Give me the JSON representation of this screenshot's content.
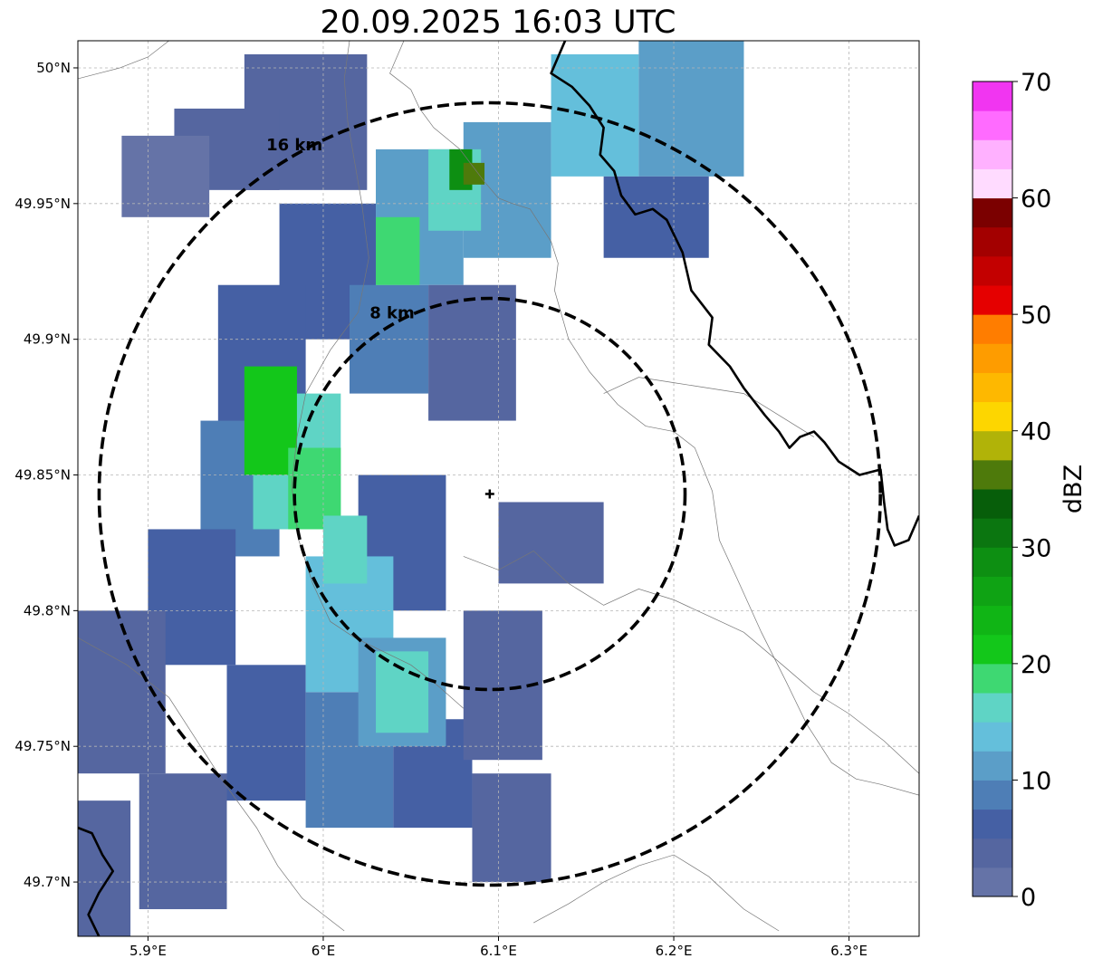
{
  "title": "20.09.2025 16:03 UTC",
  "map": {
    "lon_range": [
      5.86,
      6.34
    ],
    "lat_range": [
      49.68,
      50.01
    ],
    "lon_ticks": [
      {
        "value": 5.9,
        "label": "5.9°E"
      },
      {
        "value": 6.0,
        "label": "6°E"
      },
      {
        "value": 6.1,
        "label": "6.1°E"
      },
      {
        "value": 6.2,
        "label": "6.2°E"
      },
      {
        "value": 6.3,
        "label": "6.3°E"
      }
    ],
    "lat_ticks": [
      {
        "value": 50.0,
        "label": "50°N"
      },
      {
        "value": 49.95,
        "label": "49.95°N"
      },
      {
        "value": 49.9,
        "label": "49.9°N"
      },
      {
        "value": 49.85,
        "label": "49.85°N"
      },
      {
        "value": 49.8,
        "label": "49.8°N"
      },
      {
        "value": 49.75,
        "label": "49.75°N"
      },
      {
        "value": 49.7,
        "label": "49.7°N"
      }
    ],
    "gridlines": true,
    "radar_site": {
      "lon": 6.095,
      "lat": 49.843
    },
    "range_rings": [
      {
        "radius_km": 8,
        "label": "8 km"
      },
      {
        "radius_km": 16,
        "label": "16 km"
      }
    ],
    "borders": [
      [
        [
          6.046,
          50.01
        ],
        [
          6.038,
          49.998
        ],
        [
          6.05,
          49.992
        ],
        [
          6.055,
          49.985
        ],
        [
          6.063,
          49.978
        ],
        [
          6.078,
          49.97
        ],
        [
          6.092,
          49.958
        ],
        [
          6.1,
          49.952
        ],
        [
          6.108,
          49.95
        ],
        [
          6.118,
          49.948
        ],
        [
          6.13,
          49.936
        ],
        [
          6.134,
          49.928
        ],
        [
          6.132,
          49.918
        ],
        [
          6.14,
          49.9
        ],
        [
          6.152,
          49.888
        ],
        [
          6.168,
          49.876
        ],
        [
          6.184,
          49.868
        ],
        [
          6.2,
          49.866
        ],
        [
          6.212,
          49.86
        ],
        [
          6.222,
          49.844
        ],
        [
          6.226,
          49.826
        ],
        [
          6.236,
          49.812
        ],
        [
          6.25,
          49.792
        ],
        [
          6.264,
          49.774
        ],
        [
          6.276,
          49.758
        ],
        [
          6.29,
          49.744
        ],
        [
          6.304,
          49.738
        ],
        [
          6.318,
          49.736
        ],
        [
          6.34,
          49.732
        ]
      ],
      [
        [
          5.86,
          49.79
        ],
        [
          5.888,
          49.78
        ],
        [
          5.912,
          49.768
        ],
        [
          5.928,
          49.752
        ],
        [
          5.944,
          49.736
        ],
        [
          5.962,
          49.72
        ],
        [
          5.974,
          49.706
        ],
        [
          5.988,
          49.694
        ],
        [
          6.0,
          49.688
        ],
        [
          6.012,
          49.682
        ]
      ],
      [
        [
          6.12,
          49.685
        ],
        [
          6.14,
          49.692
        ],
        [
          6.16,
          49.7
        ],
        [
          6.18,
          49.706
        ],
        [
          6.2,
          49.71
        ],
        [
          6.22,
          49.702
        ],
        [
          6.24,
          49.69
        ],
        [
          6.26,
          49.682
        ]
      ],
      [
        [
          5.86,
          49.996
        ],
        [
          5.872,
          49.998
        ],
        [
          5.884,
          50.0
        ],
        [
          5.9,
          50.004
        ],
        [
          5.912,
          50.01
        ]
      ],
      [
        [
          6.015,
          50.01
        ],
        [
          6.012,
          49.996
        ],
        [
          6.014,
          49.98
        ],
        [
          6.018,
          49.965
        ],
        [
          6.022,
          49.95
        ],
        [
          6.026,
          49.93
        ],
        [
          6.02,
          49.91
        ],
        [
          6.004,
          49.896
        ],
        [
          5.99,
          49.88
        ],
        [
          5.985,
          49.864
        ],
        [
          5.982,
          49.846
        ],
        [
          5.986,
          49.826
        ],
        [
          5.994,
          49.81
        ],
        [
          6.004,
          49.796
        ],
        [
          6.018,
          49.79
        ],
        [
          6.034,
          49.785
        ],
        [
          6.05,
          49.78
        ],
        [
          6.066,
          49.772
        ],
        [
          6.08,
          49.764
        ]
      ],
      [
        [
          6.08,
          49.82
        ],
        [
          6.1,
          49.815
        ],
        [
          6.12,
          49.822
        ],
        [
          6.14,
          49.81
        ],
        [
          6.16,
          49.802
        ],
        [
          6.18,
          49.808
        ],
        [
          6.2,
          49.804
        ],
        [
          6.22,
          49.798
        ],
        [
          6.24,
          49.792
        ],
        [
          6.262,
          49.78
        ],
        [
          6.28,
          49.77
        ],
        [
          6.3,
          49.762
        ],
        [
          6.32,
          49.752
        ],
        [
          6.34,
          49.74
        ]
      ],
      [
        [
          6.16,
          49.88
        ],
        [
          6.18,
          49.886
        ],
        [
          6.2,
          49.884
        ],
        [
          6.22,
          49.882
        ],
        [
          6.24,
          49.88
        ],
        [
          6.26,
          49.872
        ],
        [
          6.28,
          49.864
        ]
      ]
    ],
    "national_borders": [
      [
        [
          6.138,
          50.01
        ],
        [
          6.13,
          49.998
        ],
        [
          6.142,
          49.993
        ],
        [
          6.152,
          49.986
        ],
        [
          6.16,
          49.978
        ],
        [
          6.158,
          49.968
        ],
        [
          6.166,
          49.962
        ],
        [
          6.17,
          49.953
        ],
        [
          6.178,
          49.946
        ],
        [
          6.188,
          49.948
        ],
        [
          6.196,
          49.944
        ],
        [
          6.205,
          49.932
        ],
        [
          6.21,
          49.918
        ],
        [
          6.222,
          49.908
        ],
        [
          6.22,
          49.898
        ],
        [
          6.232,
          49.89
        ],
        [
          6.24,
          49.882
        ],
        [
          6.252,
          49.872
        ],
        [
          6.26,
          49.866
        ],
        [
          6.266,
          49.86
        ],
        [
          6.272,
          49.864
        ],
        [
          6.28,
          49.866
        ],
        [
          6.286,
          49.862
        ],
        [
          6.294,
          49.855
        ],
        [
          6.306,
          49.85
        ],
        [
          6.318,
          49.852
        ],
        [
          6.32,
          49.84
        ],
        [
          6.322,
          49.83
        ],
        [
          6.326,
          49.824
        ],
        [
          6.334,
          49.826
        ],
        [
          6.338,
          49.832
        ],
        [
          6.34,
          49.835
        ]
      ],
      [
        [
          5.86,
          49.72
        ],
        [
          5.868,
          49.718
        ],
        [
          5.874,
          49.71
        ],
        [
          5.88,
          49.704
        ],
        [
          5.872,
          49.696
        ],
        [
          5.866,
          49.688
        ],
        [
          5.872,
          49.68
        ]
      ]
    ],
    "reflectivity_cells": [
      {
        "lon": [
          5.955,
          6.025
        ],
        "lat": [
          49.955,
          50.005
        ],
        "dbz": 4
      },
      {
        "lon": [
          5.915,
          5.975
        ],
        "lat": [
          49.955,
          49.985
        ],
        "dbz": 3
      },
      {
        "lon": [
          5.885,
          5.935
        ],
        "lat": [
          49.945,
          49.975
        ],
        "dbz": 2
      },
      {
        "lon": [
          5.975,
          6.03
        ],
        "lat": [
          49.9,
          49.95
        ],
        "dbz": 5
      },
      {
        "lon": [
          5.94,
          5.99
        ],
        "lat": [
          49.86,
          49.92
        ],
        "dbz": 6
      },
      {
        "lon": [
          5.93,
          5.975
        ],
        "lat": [
          49.82,
          49.87
        ],
        "dbz": 8
      },
      {
        "lon": [
          5.9,
          5.95
        ],
        "lat": [
          49.78,
          49.83
        ],
        "dbz": 5
      },
      {
        "lon": [
          5.86,
          5.91
        ],
        "lat": [
          49.74,
          49.8
        ],
        "dbz": 4
      },
      {
        "lon": [
          5.86,
          5.89
        ],
        "lat": [
          49.68,
          49.73
        ],
        "dbz": 3
      },
      {
        "lon": [
          5.895,
          5.945
        ],
        "lat": [
          49.69,
          49.74
        ],
        "dbz": 4
      },
      {
        "lon": [
          5.945,
          5.99
        ],
        "lat": [
          49.73,
          49.78
        ],
        "dbz": 6
      },
      {
        "lon": [
          5.99,
          6.04
        ],
        "lat": [
          49.72,
          49.77
        ],
        "dbz": 8
      },
      {
        "lon": [
          6.04,
          6.085
        ],
        "lat": [
          49.72,
          49.76
        ],
        "dbz": 5
      },
      {
        "lon": [
          6.085,
          6.13
        ],
        "lat": [
          49.7,
          49.74
        ],
        "dbz": 3
      },
      {
        "lon": [
          6.08,
          6.125
        ],
        "lat": [
          49.745,
          49.8
        ],
        "dbz": 4
      },
      {
        "lon": [
          6.03,
          6.08
        ],
        "lat": [
          49.92,
          49.97
        ],
        "dbz": 10
      },
      {
        "lon": [
          6.08,
          6.13
        ],
        "lat": [
          49.93,
          49.98
        ],
        "dbz": 12
      },
      {
        "lon": [
          6.13,
          6.18
        ],
        "lat": [
          49.96,
          50.005
        ],
        "dbz": 13
      },
      {
        "lon": [
          6.18,
          6.24
        ],
        "lat": [
          49.96,
          50.01
        ],
        "dbz": 11
      },
      {
        "lon": [
          6.16,
          6.22
        ],
        "lat": [
          49.93,
          49.96
        ],
        "dbz": 6
      },
      {
        "lon": [
          6.015,
          6.06
        ],
        "lat": [
          49.88,
          49.92
        ],
        "dbz": 9
      },
      {
        "lon": [
          6.06,
          6.11
        ],
        "lat": [
          49.87,
          49.92
        ],
        "dbz": 4
      },
      {
        "lon": [
          6.1,
          6.16
        ],
        "lat": [
          49.81,
          49.84
        ],
        "dbz": 3
      },
      {
        "lon": [
          6.02,
          6.07
        ],
        "lat": [
          49.8,
          49.85
        ],
        "dbz": 5
      },
      {
        "lon": [
          5.96,
          6.01
        ],
        "lat": [
          49.83,
          49.88
        ],
        "dbz": 16
      },
      {
        "lon": [
          5.99,
          6.04
        ],
        "lat": [
          49.77,
          49.82
        ],
        "dbz": 14
      },
      {
        "lon": [
          6.02,
          6.07
        ],
        "lat": [
          49.75,
          49.79
        ],
        "dbz": 12
      },
      {
        "lon": [
          5.955,
          5.985
        ],
        "lat": [
          49.85,
          49.89
        ],
        "dbz": 21
      },
      {
        "lon": [
          5.98,
          6.01
        ],
        "lat": [
          49.83,
          49.86
        ],
        "dbz": 19
      },
      {
        "lon": [
          6.0,
          6.025
        ],
        "lat": [
          49.81,
          49.835
        ],
        "dbz": 17
      },
      {
        "lon": [
          6.03,
          6.06
        ],
        "lat": [
          49.755,
          49.785
        ],
        "dbz": 17
      },
      {
        "lon": [
          6.06,
          6.09
        ],
        "lat": [
          49.94,
          49.97
        ],
        "dbz": 17
      },
      {
        "lon": [
          6.072,
          6.085
        ],
        "lat": [
          49.955,
          49.97
        ],
        "dbz": 28
      },
      {
        "lon": [
          6.08,
          6.092
        ],
        "lat": [
          49.957,
          49.965
        ],
        "dbz": 37
      },
      {
        "lon": [
          6.03,
          6.055
        ],
        "lat": [
          49.92,
          49.945
        ],
        "dbz": 18
      }
    ]
  },
  "colorbar": {
    "label": "dBZ",
    "min": 0,
    "max": 70,
    "step": 2.5,
    "ticks": [
      {
        "value": 0,
        "label": "0"
      },
      {
        "value": 10,
        "label": "10"
      },
      {
        "value": 20,
        "label": "20"
      },
      {
        "value": 30,
        "label": "30"
      },
      {
        "value": 40,
        "label": "40"
      },
      {
        "value": 50,
        "label": "50"
      },
      {
        "value": 60,
        "label": "60"
      },
      {
        "value": 70,
        "label": "70"
      }
    ],
    "colors": [
      "#6573a7",
      "#5566a0",
      "#4560a4",
      "#4e7eb6",
      "#5b9ec8",
      "#64bfdb",
      "#5fd4c5",
      "#3ed872",
      "#13c71a",
      "#10b515",
      "#0fa314",
      "#0d8f12",
      "#0b7610",
      "#075e0a",
      "#4e7a0b",
      "#b1b308",
      "#fdd600",
      "#feb800",
      "#fe9c00",
      "#ff7d00",
      "#e50000",
      "#c30000",
      "#a30000",
      "#7b0000",
      "#ffdbff",
      "#ffb1ff",
      "#ff6bff",
      "#f135f1"
    ]
  }
}
